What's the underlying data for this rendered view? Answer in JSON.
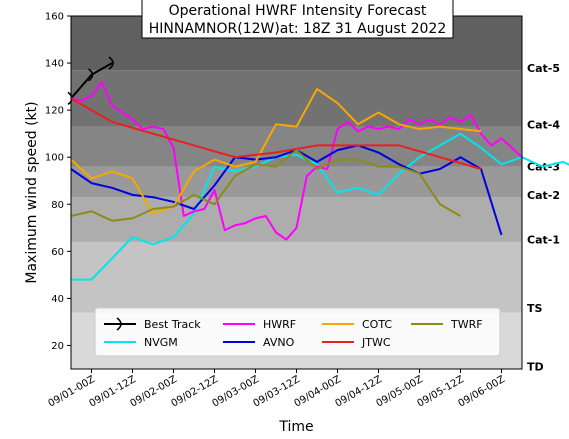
{
  "chart_data": {
    "type": "line",
    "title": "Operational HWRF Intensity Forecast",
    "subtitle": "HINNAMNOR(12W)at: 18Z 31 August 2022",
    "xlabel": "Time",
    "ylabel": "Maximum wind speed (kt)",
    "xlim": [
      "08/31-18Z",
      "09/06-00Z"
    ],
    "ylim": [
      10,
      160
    ],
    "yticks": [
      "20",
      "40",
      "60",
      "80",
      "100",
      "120",
      "140",
      "160"
    ],
    "xticks": [
      "09/01-00Z",
      "09/01-12Z",
      "09/02-00Z",
      "09/02-12Z",
      "09/03-00Z",
      "09/03-12Z",
      "09/04-00Z",
      "09/04-12Z",
      "09/05-00Z",
      "09/05-12Z",
      "09/06-00Z"
    ],
    "bands": [
      {
        "label": "TD",
        "min": 10,
        "max": 34,
        "color": "#d9d9d9"
      },
      {
        "label": "TS",
        "min": 34,
        "max": 64,
        "color": "#c4c4c4"
      },
      {
        "label": "Cat-1",
        "min": 64,
        "max": 83,
        "color": "#adadad"
      },
      {
        "label": "Cat-2",
        "min": 83,
        "max": 96,
        "color": "#999999"
      },
      {
        "label": "Cat-3",
        "min": 96,
        "max": 113,
        "color": "#858585"
      },
      {
        "label": "Cat-4",
        "min": 113,
        "max": 137,
        "color": "#727272"
      },
      {
        "label": "Cat-5",
        "min": 137,
        "max": 160,
        "color": "#606060"
      }
    ],
    "legend_position": "bottom",
    "series": [
      {
        "name": "Best Track",
        "color": "#000000",
        "hours": [
          0,
          6,
          12
        ],
        "values": [
          125,
          135,
          140
        ]
      },
      {
        "name": "NVGM",
        "color": "#00e5ee",
        "hours": [
          0,
          6,
          12,
          18,
          24,
          30,
          36,
          42,
          48,
          54,
          60,
          66,
          72,
          78,
          84,
          90,
          96,
          102,
          108,
          114,
          120,
          126,
          132,
          138,
          144,
          150
        ],
        "values": [
          48,
          48,
          57,
          66,
          63,
          66,
          76,
          96,
          94,
          96,
          100,
          101,
          97,
          85,
          87,
          84,
          93,
          100,
          105,
          110,
          104,
          97,
          100,
          96,
          98,
          94
        ]
      },
      {
        "name": "HWRF",
        "color": "#ff00ff",
        "hours": [
          0,
          3,
          6,
          9,
          12,
          15,
          18,
          21,
          24,
          27,
          30,
          33,
          36,
          39,
          42,
          45,
          48,
          51,
          54,
          57,
          60,
          63,
          66,
          69,
          72,
          75,
          78,
          81,
          84,
          87,
          90,
          93,
          96,
          99,
          102,
          105,
          108,
          111,
          114,
          117,
          120,
          123,
          126,
          129,
          132
        ],
        "values": [
          125,
          124,
          126,
          132,
          122,
          119,
          116,
          112,
          113,
          112,
          104,
          75,
          77,
          78,
          86,
          69,
          71,
          72,
          74,
          75,
          68,
          65,
          70,
          92,
          96,
          95,
          112,
          115,
          111,
          113,
          112,
          113,
          112,
          116,
          114,
          116,
          114,
          117,
          115,
          118,
          110,
          105,
          108,
          104,
          100
        ]
      },
      {
        "name": "AVNO",
        "color": "#0000e0",
        "hours": [
          0,
          6,
          12,
          18,
          24,
          30,
          36,
          42,
          48,
          54,
          60,
          66,
          72,
          78,
          84,
          90,
          96,
          102,
          108,
          114,
          120,
          126
        ],
        "values": [
          95,
          89,
          87,
          84,
          83,
          81,
          78,
          88,
          100,
          99,
          100,
          103,
          98,
          103,
          105,
          102,
          97,
          93,
          95,
          100,
          95,
          67
        ]
      },
      {
        "name": "COTC",
        "color": "#f5a800",
        "hours": [
          0,
          3,
          6,
          12,
          18,
          24,
          30,
          36,
          42,
          48,
          54,
          60,
          66,
          72,
          78,
          84,
          90,
          96,
          102,
          108,
          114,
          120
        ],
        "values": [
          99,
          95,
          91,
          94,
          91,
          76,
          79,
          94,
          99,
          96,
          98,
          114,
          113,
          129,
          123,
          114,
          119,
          114,
          112,
          113,
          112,
          111
        ]
      },
      {
        "name": "JTWC",
        "color": "#e82020",
        "hours": [
          0,
          12,
          24,
          36,
          48,
          60,
          72,
          84,
          96,
          108,
          120
        ],
        "values": [
          125,
          115,
          110,
          105,
          100,
          102,
          105,
          105,
          105,
          100,
          95
        ]
      },
      {
        "name": "TWRF",
        "color": "#8b8b18",
        "hours": [
          0,
          6,
          12,
          18,
          24,
          30,
          36,
          42,
          48,
          54,
          60,
          66,
          72,
          78,
          84,
          90,
          96,
          102,
          108,
          114
        ],
        "values": [
          75,
          77,
          73,
          74,
          78,
          79,
          84,
          80,
          92,
          97,
          96,
          103,
          95,
          99,
          99,
          96,
          96,
          93,
          80,
          75
        ]
      }
    ]
  }
}
